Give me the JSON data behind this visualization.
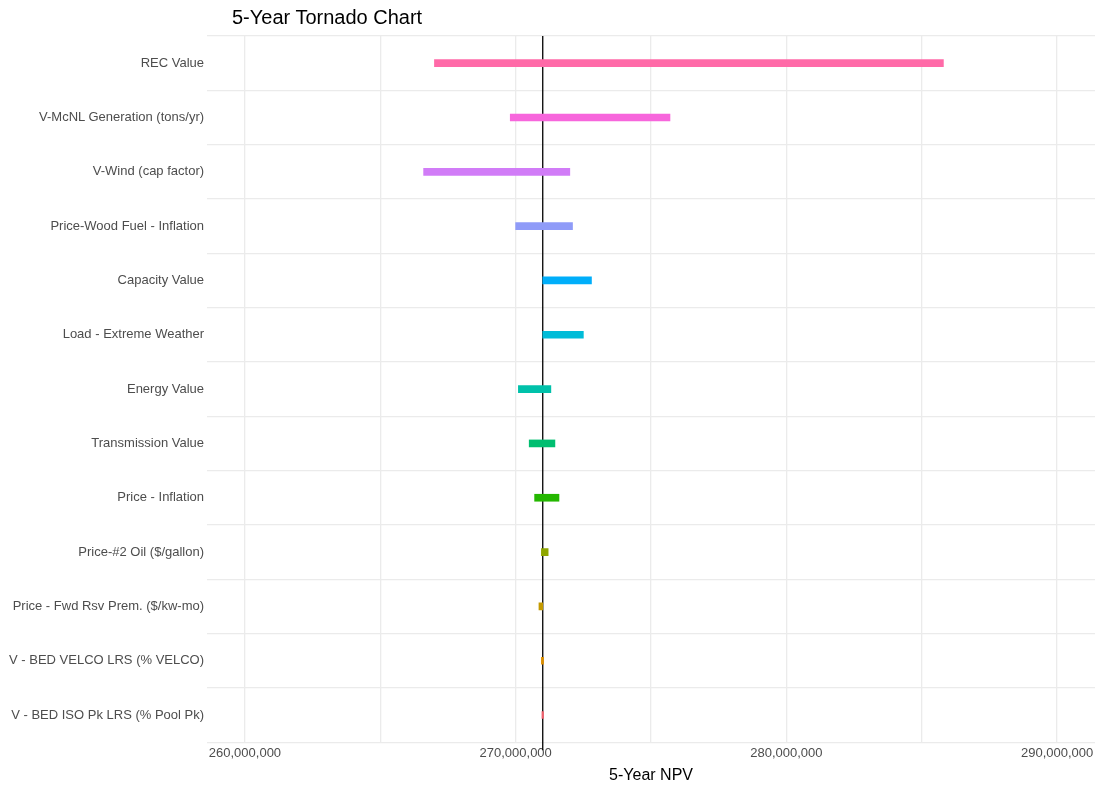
{
  "chart_data": {
    "type": "bar",
    "orientation": "horizontal",
    "title": "5-Year Tornado Chart",
    "xlabel": "5-Year NPV",
    "categories": [
      "REC Value",
      "V-McNL Generation (tons/yr)",
      "V-Wind (cap factor)",
      "Price-Wood Fuel - Inflation",
      "Capacity Value",
      "Load - Extreme Weather",
      "Energy Value",
      "Transmission Value",
      "Price - Inflation",
      "Price-#2 Oil ($/gallon)",
      "Price - Fwd Rsv Prem. ($/kw-mo)",
      "V - BED VELCO LRS (% VELCO)",
      "V - BED ISO Pk LRS (% Pool Pk)"
    ],
    "base": [
      267000000,
      269800000,
      266600000,
      270000000,
      271000000,
      271000000,
      270100000,
      270500000,
      270700000,
      270950000,
      270860000,
      270950000,
      270970000
    ],
    "values": [
      18800000,
      5900000,
      5400000,
      2100000,
      1800000,
      1500000,
      1200000,
      950000,
      900000,
      250000,
      140000,
      80000,
      60000
    ],
    "colors": [
      "#ff6aa8",
      "#f766dc",
      "#d17cf7",
      "#8f9bf8",
      "#00aefa",
      "#00bcd8",
      "#00c1aa",
      "#00be70",
      "#24b700",
      "#8fa600",
      "#c49a00",
      "#db8e00",
      "#f0616e"
    ],
    "xlim": [
      258600000,
      291400000
    ],
    "xticks": [
      {
        "value": 260000000,
        "label": "260,000,000"
      },
      {
        "value": 265000000,
        "label": null
      },
      {
        "value": 270000000,
        "label": "270,000,000"
      },
      {
        "value": 275000000,
        "label": null
      },
      {
        "value": 280000000,
        "label": "280,000,000"
      },
      {
        "value": 285000000,
        "label": null
      },
      {
        "value": 290000000,
        "label": "290,000,000"
      }
    ],
    "ref_lines": [
      {
        "axis": "x",
        "value": 271000000,
        "color": "#000000"
      }
    ],
    "grid": true,
    "legend": false
  }
}
